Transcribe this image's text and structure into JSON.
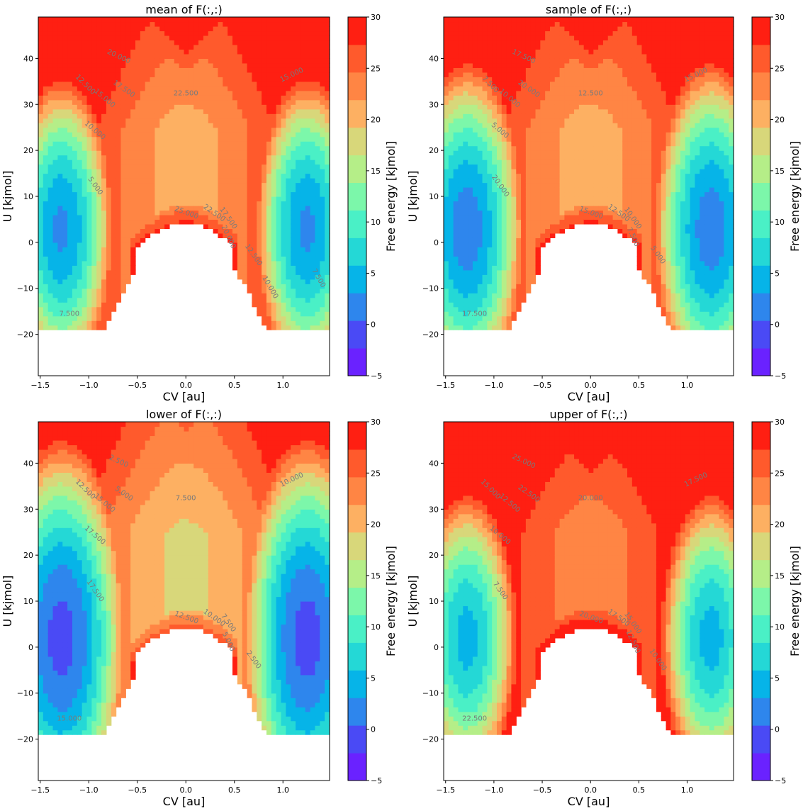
{
  "chart_data": [
    {
      "type": "heatmap",
      "title": "mean of F(:,:)",
      "xlabel": "CV [au]",
      "ylabel": "U [kjmol]",
      "colorbar_label": "Free energy [kjmol]",
      "xlim": [
        -1.52,
        1.48
      ],
      "ylim": [
        -29,
        49
      ],
      "xticks": [
        "−1.5",
        "−1.0",
        "−0.5",
        "0.0",
        "0.5",
        "1.0"
      ],
      "yticks": [
        "−20",
        "−10",
        "0",
        "10",
        "20",
        "30",
        "40"
      ],
      "colorbar_ticks": [
        "−5",
        "0",
        "5",
        "10",
        "15",
        "20",
        "25",
        "30"
      ],
      "contour_labels": [
        "20.000",
        "17.500",
        "22.500",
        "15.000",
        "12.500",
        "15.000",
        "10.000",
        "5.000",
        "7.500",
        "25.000",
        "22.500",
        "17.500",
        "20.000",
        "12.500",
        "10.000",
        "7.500"
      ],
      "well_min": 2,
      "well_y": 3,
      "well_rx": 0.2,
      "well_ry": 12,
      "barrier_base": 19,
      "barrier_top": 27,
      "lower_edge": true
    },
    {
      "type": "heatmap",
      "title": "sample of F(:,:)",
      "xlabel": "CV [au]",
      "ylabel": "U [kjmol]",
      "colorbar_label": "Free energy [kjmol]",
      "xlim": [
        -1.52,
        1.48
      ],
      "ylim": [
        -29,
        49
      ],
      "xticks": [
        "−1.5",
        "−1.0",
        "−0.5",
        "0.0",
        "0.5",
        "1.0"
      ],
      "yticks": [
        "−20",
        "−10",
        "0",
        "10",
        "20",
        "30",
        "40"
      ],
      "colorbar_ticks": [
        "−5",
        "0",
        "5",
        "10",
        "15",
        "20",
        "25",
        "30"
      ],
      "contour_labels": [
        "17.500",
        "20.000",
        "12.500",
        "15.000",
        "7.500",
        "10.000",
        "5.000",
        "20.000",
        "17.500",
        "15.000",
        "12.500",
        "10.000",
        "7.500",
        "5.000"
      ],
      "well_min": 1,
      "well_y": 3,
      "well_rx": 0.22,
      "well_ry": 13,
      "barrier_base": 19,
      "barrier_top": 27,
      "lower_edge": true
    },
    {
      "type": "heatmap",
      "title": "lower of F(:,:)",
      "xlabel": "CV [au]",
      "ylabel": "U [kjmol]",
      "colorbar_label": "Free energy [kjmol]",
      "xlim": [
        -1.52,
        1.48
      ],
      "ylim": [
        -29,
        49
      ],
      "xticks": [
        "−1.5",
        "−1.0",
        "−0.5",
        "0.0",
        "0.5",
        "1.0"
      ],
      "yticks": [
        "−20",
        "−10",
        "0",
        "10",
        "20",
        "30",
        "40"
      ],
      "colorbar_ticks": [
        "−5",
        "0",
        "5",
        "10",
        "15",
        "20",
        "25",
        "30"
      ],
      "contour_labels": [
        "2.500",
        "5.000",
        "7.500",
        "10.000",
        "12.500",
        "15.000",
        "17.500",
        "17.500",
        "15.000",
        "12.500",
        "10.000",
        "7.500",
        "5.000",
        "2.500"
      ],
      "well_min": -1,
      "well_y": 2,
      "well_rx": 0.24,
      "well_ry": 15,
      "barrier_base": 17,
      "barrier_top": 21,
      "lower_edge": true
    },
    {
      "type": "heatmap",
      "title": "upper of F(:,:)",
      "xlabel": "CV [au]",
      "ylabel": "U [kjmol]",
      "colorbar_label": "Free energy [kjmol]",
      "xlim": [
        -1.52,
        1.48
      ],
      "ylim": [
        -29,
        49
      ],
      "xticks": [
        "−1.5",
        "−1.0",
        "−0.5",
        "0.0",
        "0.5",
        "1.0"
      ],
      "yticks": [
        "−20",
        "−10",
        "0",
        "10",
        "20",
        "30",
        "40"
      ],
      "colorbar_ticks": [
        "−5",
        "0",
        "5",
        "10",
        "15",
        "20",
        "25",
        "30"
      ],
      "contour_labels": [
        "25.000",
        "22.500",
        "20.000",
        "17.500",
        "15.000",
        "12.500",
        "10.000",
        "7.500",
        "22.500",
        "20.000",
        "17.500",
        "15.000",
        "12.500",
        "10.000"
      ],
      "well_min": 4,
      "well_y": 2,
      "well_rx": 0.2,
      "well_ry": 12,
      "barrier_base": 21,
      "barrier_top": 29,
      "lower_edge": true
    }
  ],
  "colormap": [
    "#6a22ff",
    "#4a4af5",
    "#2e86ed",
    "#06b4e8",
    "#24d8d6",
    "#4af0c6",
    "#7cf7aa",
    "#b5ee88",
    "#d8d77a",
    "#fdb062",
    "#ff8544",
    "#ff5a2c",
    "#ff1f12"
  ]
}
